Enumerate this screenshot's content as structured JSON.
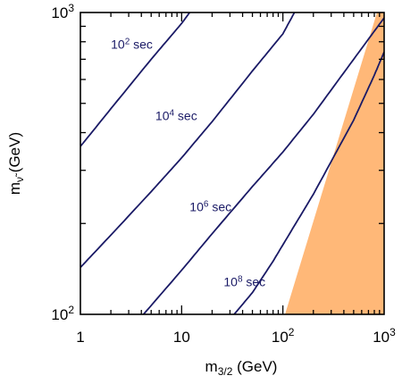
{
  "chart_data": {
    "type": "line",
    "xscale": "log",
    "yscale": "log",
    "xlim": [
      1,
      1000
    ],
    "ylim": [
      100,
      1000
    ],
    "grid": false,
    "xlabel": {
      "main": "m",
      "sub": "3/2",
      "unit": " (GeV)"
    },
    "ylabel": {
      "main": "m",
      "sub": "ν̃",
      "unit": " (GeV)"
    },
    "x_ticks": [
      {
        "value": 1,
        "label": "1"
      },
      {
        "value": 10,
        "label": "10"
      },
      {
        "value": 100,
        "base": "10",
        "exp": "2"
      },
      {
        "value": 1000,
        "base": "10",
        "exp": "3"
      }
    ],
    "y_ticks": [
      {
        "value": 100,
        "base": "10",
        "exp": "2"
      },
      {
        "value": 1000,
        "base": "10",
        "exp": "3"
      }
    ],
    "series": [
      {
        "label": {
          "base": "10",
          "exp": "2",
          "unit": " sec",
          "x": 2.0,
          "y": 760
        },
        "color": "#1a1a66",
        "points": [
          [
            1,
            360
          ],
          [
            2,
            480
          ],
          [
            5,
            700
          ],
          [
            10,
            920
          ],
          [
            12,
            1000
          ]
        ]
      },
      {
        "label": {
          "base": "10",
          "exp": "4",
          "unit": " sec",
          "x": 5.5,
          "y": 440
        },
        "color": "#1a1a66",
        "points": [
          [
            1,
            143
          ],
          [
            2,
            183
          ],
          [
            5,
            255
          ],
          [
            10,
            330
          ],
          [
            20,
            435
          ],
          [
            50,
            640
          ],
          [
            100,
            850
          ],
          [
            130,
            1000
          ]
        ]
      },
      {
        "label": {
          "base": "10",
          "exp": "6",
          "unit": " sec",
          "x": 12,
          "y": 220
        },
        "color": "#1a1a66",
        "points": [
          [
            4.2,
            100
          ],
          [
            10,
            140
          ],
          [
            20,
            185
          ],
          [
            50,
            265
          ],
          [
            100,
            345
          ],
          [
            200,
            460
          ],
          [
            500,
            700
          ],
          [
            1000,
            960
          ]
        ]
      },
      {
        "label": {
          "base": "10",
          "exp": "8",
          "unit": " sec",
          "x": 26,
          "y": 124
        },
        "color": "#1a1a66",
        "points": [
          [
            33,
            100
          ],
          [
            50,
            118
          ],
          [
            80,
            150
          ],
          [
            100,
            170
          ],
          [
            200,
            250
          ],
          [
            500,
            440
          ],
          [
            800,
            620
          ],
          [
            1000,
            740
          ]
        ]
      }
    ],
    "shaded_region": {
      "color": "#ffb878",
      "points": [
        [
          105,
          100
        ],
        [
          1000,
          100
        ],
        [
          1000,
          1000
        ],
        [
          850,
          1000
        ]
      ]
    }
  }
}
